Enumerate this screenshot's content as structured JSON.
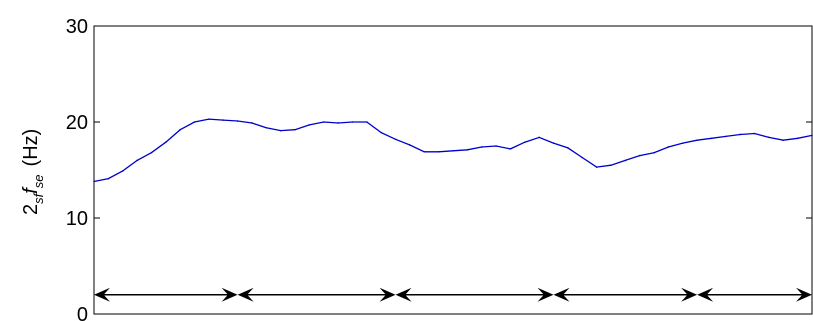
{
  "chart_data": {
    "type": "line",
    "title": "",
    "xlabel": "",
    "ylabel_parts": {
      "base": "2",
      "sub1": "sf",
      "f": "f",
      "sub2": "se",
      "unit": "(Hz)"
    },
    "ylim": [
      0,
      30
    ],
    "yticks": [
      "0",
      "10",
      "20",
      "30"
    ],
    "xlim": [
      0,
      100
    ],
    "grid": false,
    "legend": "none",
    "series": [
      {
        "color": "#0000cc",
        "x": [
          0,
          2,
          4,
          6,
          8,
          10,
          12,
          14,
          16,
          18,
          20,
          22,
          24,
          26,
          28,
          30,
          32,
          34,
          36,
          38,
          40,
          42,
          44,
          46,
          48,
          50,
          52,
          54,
          56,
          58,
          60,
          62,
          64,
          66,
          68,
          70,
          72,
          74,
          76,
          78,
          80,
          82,
          84,
          86,
          88,
          90,
          92,
          94,
          96,
          98,
          100
        ],
        "values": [
          13.8,
          14.1,
          14.9,
          16.0,
          16.8,
          17.9,
          19.2,
          20.0,
          20.3,
          20.2,
          20.1,
          19.9,
          19.4,
          19.1,
          19.2,
          19.7,
          20.0,
          19.9,
          20.0,
          20.0,
          18.9,
          18.2,
          17.6,
          16.9,
          16.9,
          17.0,
          17.1,
          17.4,
          17.5,
          17.2,
          17.9,
          18.4,
          17.8,
          17.3,
          16.3,
          15.3,
          15.5,
          16.0,
          16.5,
          16.8,
          17.4,
          17.8,
          18.1,
          18.3,
          18.5,
          18.7,
          18.8,
          18.4,
          18.1,
          18.3,
          18.6
        ]
      }
    ],
    "segment_markers": {
      "y": 2,
      "boundaries": [
        0,
        20,
        42,
        64,
        84,
        100
      ]
    }
  }
}
